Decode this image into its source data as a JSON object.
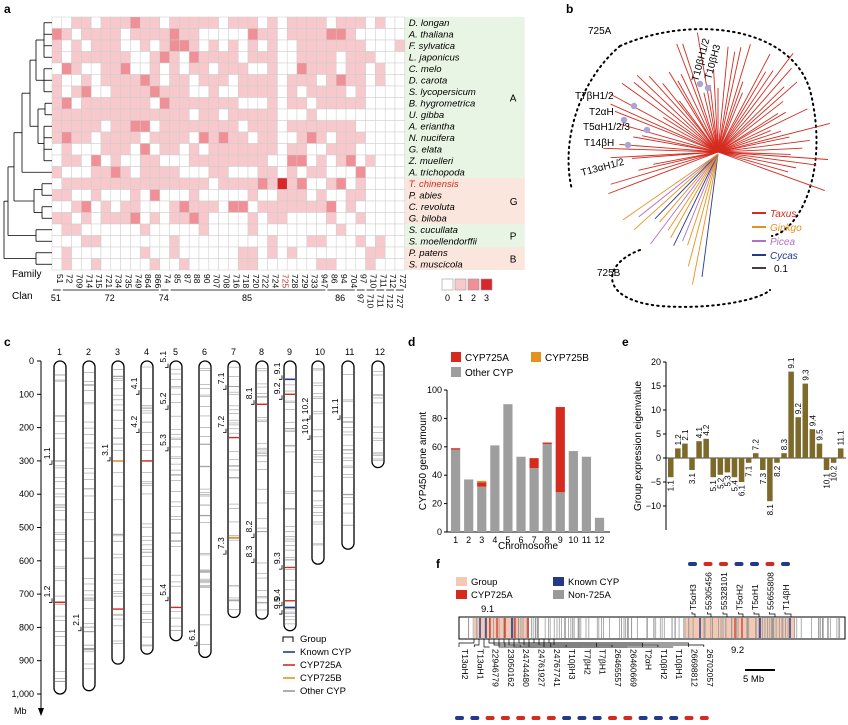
{
  "panels": [
    "a",
    "b",
    "c",
    "d",
    "e",
    "f"
  ],
  "colors": {
    "c0": "#ffffff",
    "c1": "#f8c9cc",
    "c2": "#f08f95",
    "c3": "#d9262c",
    "grid": "#cccccc",
    "groupA": "#e8f4e4",
    "groupG": "#fbe6dd",
    "groupP": "#e8f4e4",
    "groupB": "#fbe6dd",
    "taxus": "#d42b1e",
    "ginkgo": "#e8901e",
    "picea": "#b36fc5",
    "cycas": "#233a8c",
    "known": "#233a8c",
    "cyp725a": "#d42b1e",
    "cyp725b": "#e8901e",
    "other": "#9a9a9a",
    "bar_other": "#9e9e9e",
    "eig": "#7d6a2a",
    "group_box": "#f3c9b3"
  },
  "panel_a": {
    "species": [
      "D. longan",
      "A. thaliana",
      "F. sylvatica",
      "L. japonicus",
      "C. melo",
      "D. carota",
      "S. lycopersicum",
      "B. hygrometrica",
      "U. gibba",
      "A. eriantha",
      "N. nucifera",
      "G. elata",
      "Z. muelleri",
      "A. trichopoda",
      "T. chinensis",
      "P. abies",
      "C. revoluta",
      "G. biloba",
      "S. cucullata",
      "S. moellendorffii",
      "P. patens",
      "S. muscicola"
    ],
    "highlight_species": "T. chinensis",
    "groups": [
      {
        "label": "A",
        "from": 0,
        "to": 13
      },
      {
        "label": "G",
        "from": 14,
        "to": 17
      },
      {
        "label": "P",
        "from": 18,
        "to": 19
      },
      {
        "label": "B",
        "from": 20,
        "to": 21
      }
    ],
    "families": [
      "51",
      "72",
      "709",
      "714",
      "715",
      "721",
      "734",
      "735",
      "749",
      "864",
      "866",
      "74",
      "85",
      "87",
      "88",
      "90",
      "707",
      "708",
      "716",
      "718",
      "720",
      "722",
      "724",
      "725",
      "728",
      "729",
      "733",
      "947",
      "86",
      "94",
      "704",
      "97",
      "710",
      "711",
      "712",
      "727"
    ],
    "highlight_family": "725",
    "family_label": "Family",
    "clan_label": "Clan",
    "clans": [
      {
        "label": "51",
        "from": 0,
        "to": 0
      },
      {
        "label": "72",
        "from": 1,
        "to": 10
      },
      {
        "label": "74",
        "from": 11,
        "to": 11
      },
      {
        "label": "85",
        "from": 12,
        "to": 27
      },
      {
        "label": "86",
        "from": 28,
        "to": 30
      },
      {
        "label": "97",
        "from": 31,
        "to": 31
      },
      {
        "label": "710",
        "from": 32,
        "to": 32
      },
      {
        "label": "711",
        "from": 33,
        "to": 33
      },
      {
        "label": "712",
        "from": 34,
        "to": 34
      },
      {
        "label": "727",
        "from": 35,
        "to": 35
      }
    ],
    "legend": [
      "0",
      "1",
      "2",
      "3"
    ]
  },
  "panel_b": {
    "labels": [
      "725A",
      "725B",
      "T7βH1/2",
      "T2αH",
      "T5αH1/2/3",
      "T14βH",
      "T13αH1/2",
      "T10βH1/2",
      "T10βH3"
    ],
    "legend": [
      {
        "name": "Taxus",
        "color": "#d42b1e"
      },
      {
        "name": "Ginkgo",
        "color": "#e8901e"
      },
      {
        "name": "Picea",
        "color": "#b36fc5"
      },
      {
        "name": "Cycas",
        "color": "#233a8c"
      }
    ],
    "scale": "0.1"
  },
  "panel_c": {
    "chromosomes": [
      "1",
      "2",
      "3",
      "4",
      "5",
      "6",
      "7",
      "8",
      "9",
      "10",
      "11",
      "12"
    ],
    "lengths_mb": [
      1000,
      990,
      910,
      880,
      840,
      890,
      770,
      775,
      810,
      610,
      565,
      320
    ],
    "yticks": [
      "0",
      "100",
      "200",
      "300",
      "400",
      "500",
      "600",
      "700",
      "800",
      "900",
      "1,000"
    ],
    "yunit": "Mb",
    "group_labels": [
      {
        "chr": 1,
        "mb": 310,
        "label": "1.1"
      },
      {
        "chr": 1,
        "mb": 725,
        "label": "1.2"
      },
      {
        "chr": 2,
        "mb": 810,
        "label": "2.1"
      },
      {
        "chr": 3,
        "mb": 300,
        "label": "3.1"
      },
      {
        "chr": 4,
        "mb": 100,
        "label": "4.1"
      },
      {
        "chr": 4,
        "mb": 215,
        "label": "4.2"
      },
      {
        "chr": 5,
        "mb": 20,
        "label": "5.1"
      },
      {
        "chr": 5,
        "mb": 145,
        "label": "5.2"
      },
      {
        "chr": 5,
        "mb": 270,
        "label": "5.3"
      },
      {
        "chr": 5,
        "mb": 720,
        "label": "5.4"
      },
      {
        "chr": 6,
        "mb": 855,
        "label": "6.1"
      },
      {
        "chr": 7,
        "mb": 85,
        "label": "7.1"
      },
      {
        "chr": 7,
        "mb": 215,
        "label": "7.2"
      },
      {
        "chr": 7,
        "mb": 580,
        "label": "7.3"
      },
      {
        "chr": 8,
        "mb": 130,
        "label": "8.1"
      },
      {
        "chr": 8,
        "mb": 530,
        "label": "8.2"
      },
      {
        "chr": 8,
        "mb": 605,
        "label": "8.3"
      },
      {
        "chr": 9,
        "mb": 55,
        "label": "9.1"
      },
      {
        "chr": 9,
        "mb": 115,
        "label": "9.2"
      },
      {
        "chr": 9,
        "mb": 625,
        "label": "9.3"
      },
      {
        "chr": 9,
        "mb": 735,
        "label": "9.4"
      },
      {
        "chr": 9,
        "mb": 760,
        "label": "9.5"
      },
      {
        "chr": 10,
        "mb": 235,
        "label": "10.1"
      },
      {
        "chr": 10,
        "mb": 175,
        "label": "10.2"
      },
      {
        "chr": 11,
        "mb": 175,
        "label": "11.1"
      }
    ],
    "legend": [
      "Group",
      "Known CYP",
      "CYP725A",
      "CYP725B",
      "Other CYP"
    ]
  },
  "panel_d": {
    "chart_data": {
      "type": "bar",
      "categories": [
        "1",
        "2",
        "3",
        "4",
        "5",
        "6",
        "7",
        "8",
        "9",
        "10",
        "11",
        "12"
      ],
      "series": [
        {
          "name": "Other CYP",
          "values": [
            58,
            37,
            32,
            61,
            90,
            53,
            45,
            62,
            28,
            57,
            53,
            10
          ]
        },
        {
          "name": "CYP725A",
          "values": [
            1,
            0,
            3,
            0,
            0,
            0,
            7,
            1,
            60,
            0,
            0,
            0
          ]
        },
        {
          "name": "CYP725B",
          "values": [
            0,
            0,
            1,
            0,
            0,
            0,
            0,
            0,
            0,
            0,
            0,
            0
          ]
        }
      ],
      "xlabel": "Chromosome",
      "ylabel": "CYP450 gene amount",
      "ylim": [
        0,
        100
      ],
      "yticks": [
        "0",
        "20",
        "40",
        "60",
        "80",
        "100"
      ],
      "legend": [
        "CYP725A",
        "CYP725B",
        "Other CYP"
      ]
    }
  },
  "panel_e": {
    "chart_data": {
      "type": "bar",
      "categories": [
        "1.1",
        "1.2",
        "2.1",
        "3.1",
        "4.1",
        "4.2",
        "5.1",
        "5.2",
        "5.3",
        "5.4",
        "6.1",
        "7.1",
        "7.2",
        "7.3",
        "8.1",
        "8.2",
        "8.3",
        "9.1",
        "9.2",
        "9.3",
        "9.4",
        "9.5",
        "10.1",
        "10.2",
        "11.1"
      ],
      "values": [
        -4,
        2,
        3,
        -2.5,
        3.5,
        4,
        -4,
        -3.5,
        -3,
        -4,
        -5,
        -1,
        1,
        -2.5,
        -9,
        -1,
        1,
        18,
        8.5,
        15.5,
        6,
        3,
        -2.5,
        -1,
        2
      ],
      "ylabel": "Group expression eigenvalue",
      "ylim": [
        -15,
        20
      ],
      "yticks": [
        "-10",
        "-5",
        "0",
        "5",
        "10",
        "15",
        "20"
      ]
    }
  },
  "panel_f": {
    "legend": [
      "Group",
      "Known CYP",
      "CYP725A",
      "Non-725A"
    ],
    "labels_9_1": "9.1",
    "labels_9_2": "9.2",
    "scale": "5 Mb",
    "bottom_genes": [
      "T13αH2",
      "T13αH1",
      "22946779",
      "23050162",
      "24744480",
      "24761927",
      "24767741",
      "T10βH3",
      "T7βH2",
      "T7βH1",
      "26465557",
      "26460669",
      "T2αH",
      "T10βH2",
      "T10βH1",
      "26698812",
      "26702057"
    ],
    "bottom_known": [
      true,
      true,
      false,
      false,
      false,
      false,
      false,
      true,
      true,
      true,
      false,
      false,
      true,
      true,
      true,
      false,
      false
    ],
    "top_genes": [
      "T5αH3",
      "55305456",
      "55328101",
      "T5αH2",
      "T5αH1",
      "55655808",
      "T14βH"
    ],
    "top_known": [
      true,
      false,
      false,
      true,
      true,
      false,
      true
    ]
  }
}
